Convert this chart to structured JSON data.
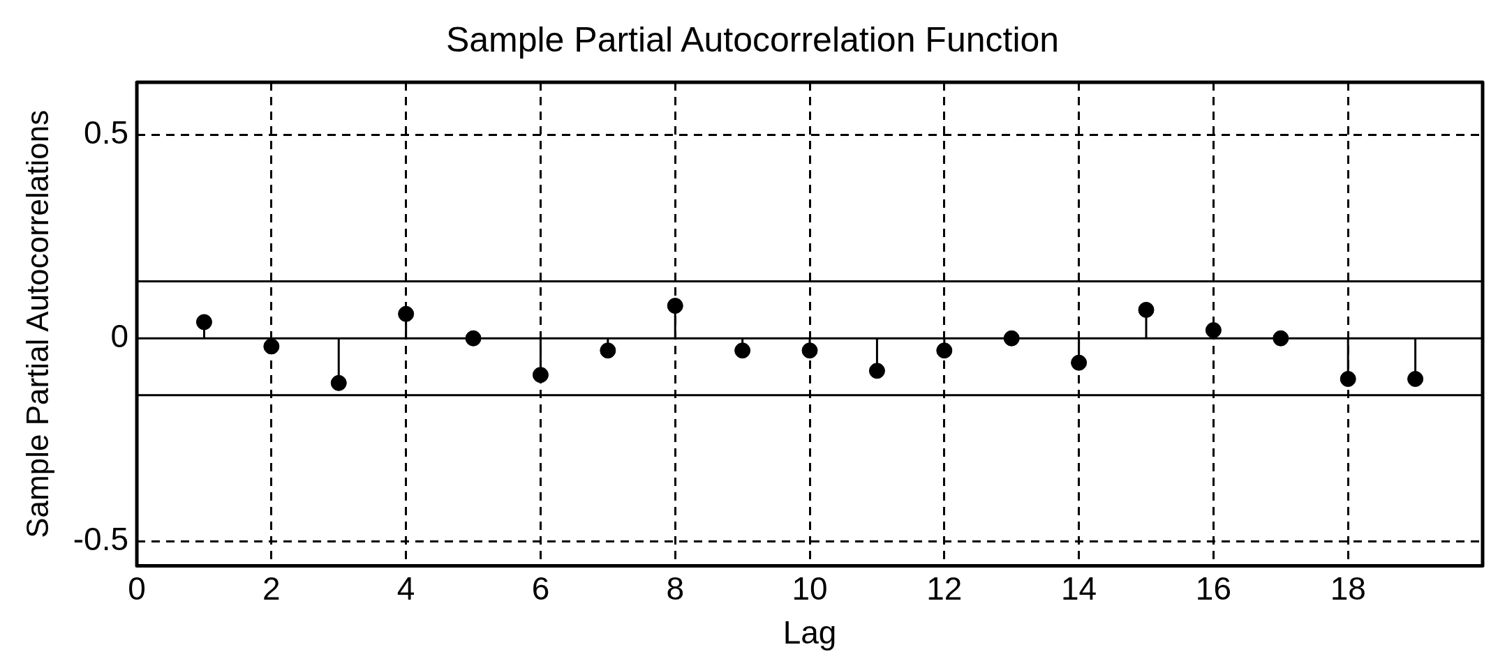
{
  "chart_data": {
    "type": "lollipop",
    "title": "Sample Partial Autocorrelation Function",
    "xlabel": "Lag",
    "ylabel": "Sample Partial Autocorrelations",
    "x": [
      1,
      2,
      3,
      4,
      5,
      6,
      7,
      8,
      9,
      10,
      11,
      12,
      13,
      14,
      15,
      16,
      17,
      18,
      19
    ],
    "values": [
      0.04,
      -0.02,
      -0.11,
      0.06,
      0.0,
      -0.09,
      -0.03,
      0.08,
      -0.03,
      -0.03,
      -0.08,
      -0.03,
      0.0,
      -0.06,
      0.07,
      0.02,
      0.0,
      -0.1,
      -0.1
    ],
    "color": "#000000",
    "marker": "circle",
    "xlim": [
      0,
      20
    ],
    "xticks": [
      0,
      2,
      4,
      6,
      8,
      10,
      12,
      14,
      16,
      18
    ],
    "ylim": [
      -0.56,
      0.63
    ],
    "yticks": [
      -0.5,
      0,
      0.5
    ],
    "ref_lines": [
      {
        "axis": "y",
        "value": 0.14
      },
      {
        "axis": "y",
        "value": -0.14
      },
      {
        "axis": "y",
        "value": 0
      }
    ],
    "grid": true,
    "line_style": "dashed"
  }
}
